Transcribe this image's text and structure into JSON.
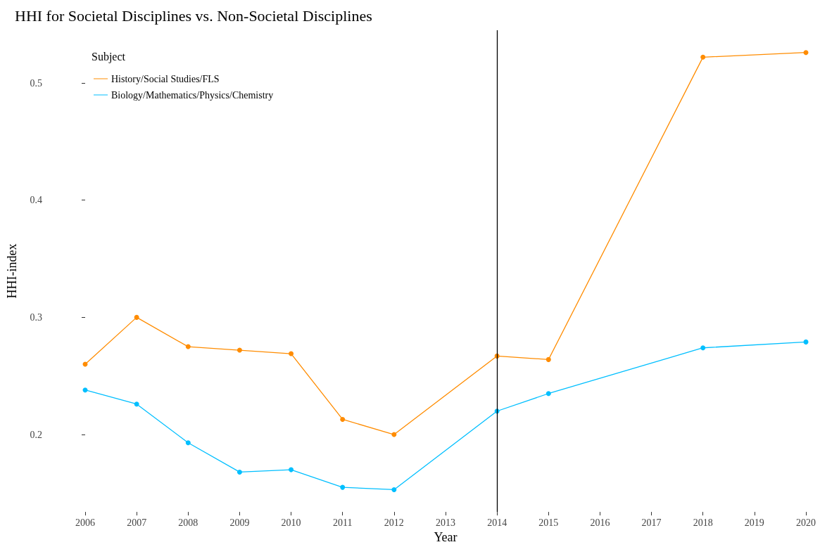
{
  "chart_data": {
    "type": "line",
    "title": "HHI for Societal Disciplines vs. Non-Societal Disciplines",
    "xlabel": "Year",
    "ylabel": "HHI-index",
    "legend_title": "Subject",
    "x": [
      2006,
      2007,
      2008,
      2009,
      2010,
      2011,
      2012,
      2014,
      2015,
      2018,
      2020
    ],
    "series": [
      {
        "name": "History/Social Studies/FLS",
        "color": "#ff8c00",
        "values": [
          0.26,
          0.3,
          0.275,
          0.272,
          0.269,
          0.213,
          0.2,
          0.267,
          0.264,
          0.522,
          0.526
        ]
      },
      {
        "name": "Biology/Mathematics/Physics/Chemistry",
        "color": "#00bfff",
        "values": [
          0.238,
          0.226,
          0.193,
          0.168,
          0.17,
          0.155,
          0.153,
          0.22,
          0.235,
          0.274,
          0.279
        ]
      }
    ],
    "xlim": [
      2006,
      2020
    ],
    "xticks": [
      2006,
      2007,
      2008,
      2009,
      2010,
      2011,
      2012,
      2013,
      2014,
      2015,
      2016,
      2017,
      2018,
      2019,
      2020
    ],
    "ylim": [
      0.134,
      0.545
    ],
    "yticks": [
      0.2,
      0.3,
      0.4,
      0.5
    ],
    "ref_lines": [
      {
        "axis": "x",
        "value": 2014,
        "color": "#000000"
      }
    ],
    "grid": false,
    "legend": "top left",
    "marker": "circle",
    "line_style": "solid"
  }
}
